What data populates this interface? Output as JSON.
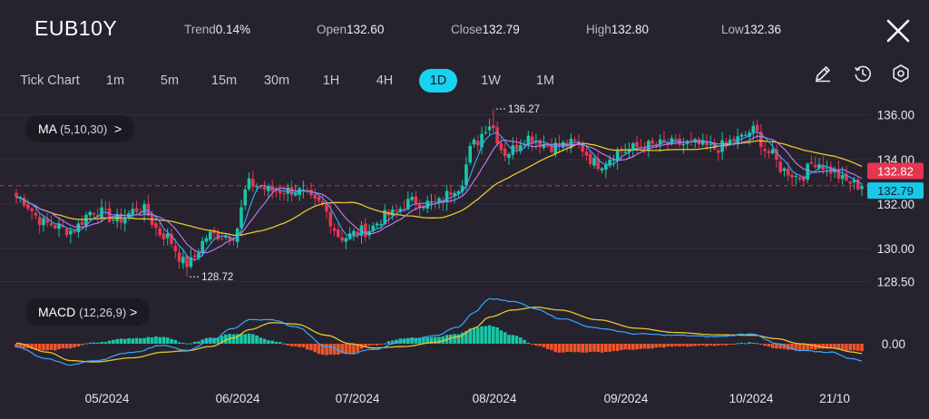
{
  "header": {
    "symbol": "EUB10Y",
    "trend_label": "Trend",
    "trend_value": "0.14%",
    "open_label": "Open",
    "open_value": "132.60",
    "close_label": "Close",
    "close_value": "132.79",
    "high_label": "High",
    "high_value": "132.80",
    "low_label": "Low",
    "low_value": "132.36"
  },
  "timeframes": [
    "Tick Chart",
    "1m",
    "5m",
    "15m",
    "30m",
    "1H",
    "4H",
    "1D",
    "1W",
    "1M"
  ],
  "active_timeframe": "1D",
  "indicators": {
    "ma": {
      "name": "MA",
      "params": "(5,10,30)",
      "arrow": ">"
    },
    "macd": {
      "name": "MACD",
      "params": "(12,26,9)",
      "arrow": ">"
    }
  },
  "icons": [
    "pencil-icon",
    "history-icon",
    "settings-gear-icon",
    "close-icon"
  ],
  "colors": {
    "background": "#26232f",
    "up": "#17c7a6",
    "down": "#e8354f",
    "ma5": "#3aa8ff",
    "ma10": "#c57cf0",
    "ma30": "#e8c52a",
    "macd_line": "#3aa8ff",
    "signal_line": "#e8c52a",
    "hist_pos": "#17c7a6",
    "hist_neg": "#f0542a",
    "accent": "#18d3f0"
  },
  "chart_data": {
    "type": "candlestick",
    "price_axis": {
      "ticks": [
        "136.00",
        "134.00",
        "132.00",
        "130.00",
        "128.50"
      ],
      "ylim": [
        128.2,
        136.6
      ]
    },
    "macd_axis": {
      "ticks": [
        "0.00"
      ]
    },
    "x_axis": {
      "tick_labels": [
        "05/2024",
        "06/2024",
        "07/2024",
        "08/2024",
        "09/2024",
        "10/2024",
        "21/10"
      ]
    },
    "annotations": {
      "high": "136.27",
      "low": "128.72"
    },
    "price_tags": {
      "last_red": "132.82",
      "last_teal": "132.79"
    },
    "reference_line_value": 132.82,
    "close_anchors": [
      [
        0,
        132.3
      ],
      [
        8,
        131.1
      ],
      [
        14,
        130.8
      ],
      [
        20,
        131.7
      ],
      [
        26,
        131.3
      ],
      [
        32,
        131.8
      ],
      [
        38,
        130.6
      ],
      [
        44,
        129.3
      ],
      [
        50,
        130.6
      ],
      [
        56,
        130.6
      ],
      [
        60,
        132.9
      ],
      [
        66,
        132.6
      ],
      [
        72,
        132.6
      ],
      [
        78,
        132.0
      ],
      [
        84,
        130.5
      ],
      [
        90,
        130.8
      ],
      [
        96,
        131.5
      ],
      [
        102,
        132.1
      ],
      [
        108,
        132.0
      ],
      [
        114,
        132.8
      ],
      [
        118,
        134.7
      ],
      [
        122,
        135.6
      ],
      [
        126,
        134.3
      ],
      [
        132,
        135.0
      ],
      [
        138,
        134.6
      ],
      [
        144,
        134.7
      ],
      [
        150,
        133.8
      ],
      [
        156,
        134.4
      ],
      [
        162,
        134.6
      ],
      [
        168,
        134.7
      ],
      [
        174,
        134.7
      ],
      [
        180,
        134.5
      ],
      [
        186,
        134.9
      ],
      [
        190,
        135.3
      ],
      [
        194,
        134.3
      ],
      [
        198,
        133.5
      ],
      [
        202,
        133.2
      ],
      [
        206,
        133.9
      ],
      [
        210,
        133.5
      ],
      [
        214,
        133.0
      ],
      [
        218,
        132.8
      ]
    ],
    "macd_anchors": [
      [
        0,
        -0.12
      ],
      [
        8,
        -0.55
      ],
      [
        14,
        -0.75
      ],
      [
        20,
        -0.6
      ],
      [
        30,
        -0.3
      ],
      [
        38,
        -0.05
      ],
      [
        44,
        -0.25
      ],
      [
        50,
        0.1
      ],
      [
        56,
        0.55
      ],
      [
        60,
        0.85
      ],
      [
        66,
        0.85
      ],
      [
        72,
        0.6
      ],
      [
        80,
        -0.1
      ],
      [
        86,
        -0.35
      ],
      [
        92,
        -0.2
      ],
      [
        100,
        0.1
      ],
      [
        108,
        0.3
      ],
      [
        114,
        0.6
      ],
      [
        118,
        1.1
      ],
      [
        122,
        1.6
      ],
      [
        128,
        1.5
      ],
      [
        134,
        1.25
      ],
      [
        140,
        0.9
      ],
      [
        150,
        0.55
      ],
      [
        160,
        0.35
      ],
      [
        170,
        0.3
      ],
      [
        180,
        0.25
      ],
      [
        190,
        0.35
      ],
      [
        196,
        0.0
      ],
      [
        202,
        -0.25
      ],
      [
        210,
        -0.3
      ],
      [
        216,
        -0.55
      ],
      [
        218,
        -0.6
      ]
    ],
    "signal_anchors": [
      [
        0,
        0.02
      ],
      [
        8,
        -0.3
      ],
      [
        14,
        -0.6
      ],
      [
        20,
        -0.65
      ],
      [
        30,
        -0.5
      ],
      [
        38,
        -0.3
      ],
      [
        44,
        -0.25
      ],
      [
        50,
        -0.1
      ],
      [
        56,
        0.2
      ],
      [
        60,
        0.5
      ],
      [
        66,
        0.75
      ],
      [
        72,
        0.7
      ],
      [
        80,
        0.3
      ],
      [
        86,
        0.0
      ],
      [
        92,
        -0.15
      ],
      [
        100,
        -0.1
      ],
      [
        108,
        0.05
      ],
      [
        114,
        0.25
      ],
      [
        118,
        0.55
      ],
      [
        122,
        0.95
      ],
      [
        128,
        1.2
      ],
      [
        134,
        1.3
      ],
      [
        140,
        1.2
      ],
      [
        150,
        0.85
      ],
      [
        160,
        0.55
      ],
      [
        170,
        0.4
      ],
      [
        180,
        0.32
      ],
      [
        190,
        0.3
      ],
      [
        196,
        0.18
      ],
      [
        202,
        0.0
      ],
      [
        210,
        -0.15
      ],
      [
        216,
        -0.3
      ],
      [
        218,
        -0.35
      ]
    ]
  }
}
